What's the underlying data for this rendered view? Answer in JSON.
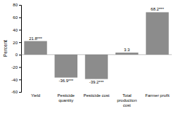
{
  "chart_data": {
    "type": "bar",
    "categories": [
      "Yield",
      "Pesticide\nquantity",
      "Pesticide cost",
      "Total\nproduction\ncost",
      "Farmer profit"
    ],
    "values": [
      21.8,
      -36.9,
      -39.2,
      3.3,
      68.2
    ],
    "value_labels": [
      "21.8***",
      "-36.9***",
      "-39.2***",
      "3.3",
      "68.2***"
    ],
    "data_labels": true,
    "color": "#8c8c8c",
    "ylabel": "Percent",
    "ylim": [
      -60,
      80
    ],
    "yticks": [
      -60,
      -40,
      -20,
      0,
      20,
      40,
      60,
      80
    ],
    "grid": false
  }
}
